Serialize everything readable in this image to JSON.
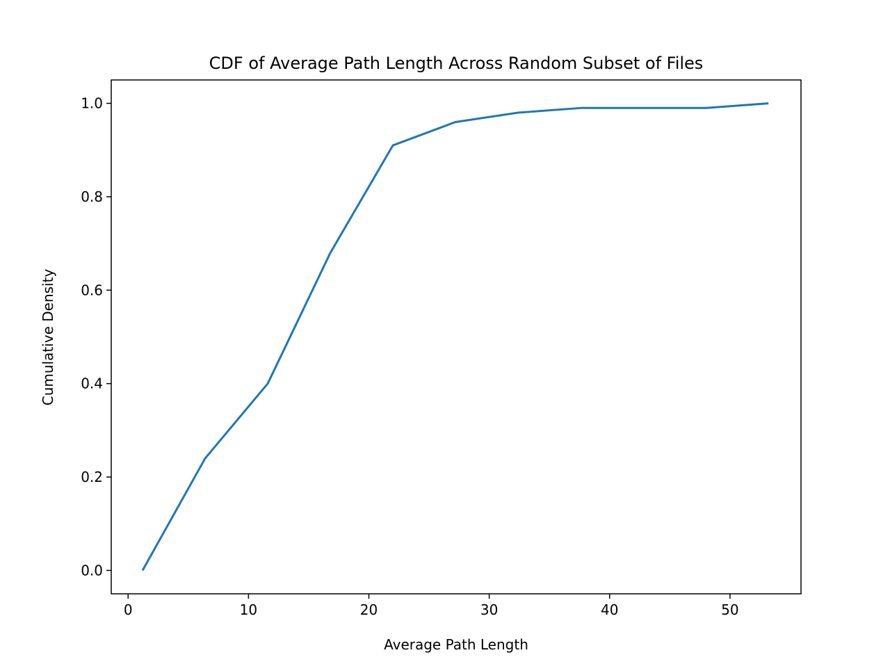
{
  "chart_data": {
    "type": "line",
    "title": "CDF of Average Path Length Across Random Subset of Files",
    "xlabel": "Average Path Length",
    "ylabel": "Cumulative Density",
    "xlim": [
      -1.4,
      55.9
    ],
    "ylim": [
      -0.05,
      1.05
    ],
    "xticks": [
      0,
      10,
      20,
      30,
      40,
      50
    ],
    "xtick_labels": [
      "0",
      "10",
      "20",
      "30",
      "40",
      "50"
    ],
    "yticks": [
      0.0,
      0.2,
      0.4,
      0.6,
      0.8,
      1.0
    ],
    "ytick_labels": [
      "0.0",
      "0.2",
      "0.4",
      "0.6",
      "0.8",
      "1.0"
    ],
    "grid": false,
    "series": [
      {
        "color": "#1f77b4",
        "x": [
          1.2,
          6.4,
          11.6,
          16.8,
          22.0,
          27.2,
          32.4,
          37.6,
          42.8,
          48.0,
          53.2
        ],
        "y": [
          0.0,
          0.24,
          0.4,
          0.68,
          0.91,
          0.96,
          0.98,
          0.99,
          0.99,
          0.99,
          1.0
        ]
      }
    ]
  }
}
